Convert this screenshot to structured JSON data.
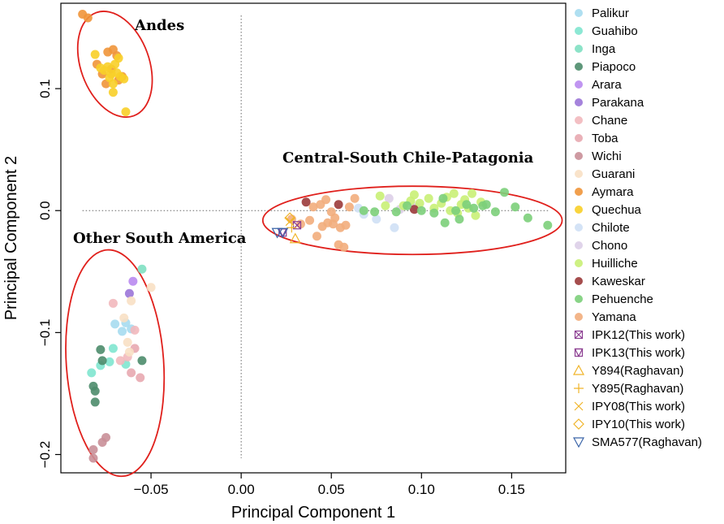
{
  "chart_data": {
    "type": "scatter",
    "xlabel": "Principal Component 1",
    "ylabel": "Principal Component 2",
    "xlim": [
      -0.1,
      0.18
    ],
    "ylim": [
      -0.215,
      0.17
    ],
    "xticks": [
      -0.05,
      0.0,
      0.05,
      0.1,
      0.15
    ],
    "xtick_labels": [
      "−0.05",
      "0.00",
      "0.05",
      "0.10",
      "0.15"
    ],
    "yticks": [
      -0.2,
      -0.1,
      0.0,
      0.1
    ],
    "ytick_labels": [
      "−0.2",
      "−0.1",
      "0.0",
      "0.1"
    ],
    "reference_lines": {
      "x": 0,
      "y": 0,
      "style": "dotted"
    },
    "grid": false,
    "legend_position": "right",
    "cluster_labels": [
      "Andes",
      "Central-South Chile-Patagonia",
      "Other South America"
    ],
    "clusters": [
      {
        "label": "Andes",
        "center": [
          -0.07,
          0.12
        ],
        "radii": [
          0.019,
          0.045
        ],
        "rotation": -20,
        "color": "#e0201c"
      },
      {
        "label": "Central-South Chile-Patagonia",
        "center": [
          0.095,
          -0.008
        ],
        "radii": [
          0.083,
          0.028
        ],
        "rotation": 0,
        "color": "#e0201c"
      },
      {
        "label": "Other South America",
        "center": [
          -0.07,
          -0.125
        ],
        "radii": [
          0.027,
          0.093
        ],
        "rotation": -4,
        "color": "#e0201c"
      }
    ],
    "series": [
      {
        "name": "Palikur",
        "marker": "circle",
        "color": "#a6dcef",
        "points": [
          [
            -0.07,
            -0.093
          ],
          [
            -0.066,
            -0.099
          ],
          [
            -0.064,
            -0.092
          ],
          [
            -0.061,
            -0.097
          ]
        ]
      },
      {
        "name": "Guahibo",
        "marker": "circle",
        "color": "#7fe6cf",
        "points": [
          [
            -0.083,
            -0.133
          ],
          [
            -0.078,
            -0.127
          ],
          [
            -0.073,
            -0.124
          ],
          [
            -0.071,
            -0.113
          ],
          [
            -0.064,
            -0.126
          ]
        ]
      },
      {
        "name": "Inga",
        "marker": "circle",
        "color": "#80e0c2",
        "points": [
          [
            -0.055,
            -0.048
          ]
        ]
      },
      {
        "name": "Piapoco",
        "marker": "circle",
        "color": "#4d8c6b",
        "points": [
          [
            -0.082,
            -0.144
          ],
          [
            -0.081,
            -0.148
          ],
          [
            -0.081,
            -0.157
          ],
          [
            -0.078,
            -0.114
          ],
          [
            -0.077,
            -0.123
          ],
          [
            -0.055,
            -0.123
          ]
        ]
      },
      {
        "name": "Arara",
        "marker": "circle",
        "color": "#b98af0",
        "points": [
          [
            -0.06,
            -0.058
          ]
        ]
      },
      {
        "name": "Parakana",
        "marker": "circle",
        "color": "#9b75d8",
        "points": [
          [
            -0.062,
            -0.068
          ]
        ]
      },
      {
        "name": "Chane",
        "marker": "circle",
        "color": "#f2b8bd",
        "points": [
          [
            -0.071,
            -0.076
          ],
          [
            -0.067,
            -0.123
          ],
          [
            -0.063,
            -0.12
          ],
          [
            -0.059,
            -0.098
          ]
        ]
      },
      {
        "name": "Toba",
        "marker": "circle",
        "color": "#e8a8b0",
        "points": [
          [
            -0.061,
            -0.133
          ],
          [
            -0.059,
            -0.113
          ],
          [
            -0.056,
            -0.137
          ]
        ]
      },
      {
        "name": "Wichi",
        "marker": "circle",
        "color": "#c98f98",
        "points": [
          [
            -0.082,
            -0.196
          ],
          [
            -0.082,
            -0.203
          ],
          [
            -0.077,
            -0.19
          ],
          [
            -0.075,
            -0.186
          ]
        ]
      },
      {
        "name": "Guarani",
        "marker": "circle",
        "color": "#f8e0c4",
        "points": [
          [
            -0.065,
            -0.088
          ],
          [
            -0.063,
            -0.108
          ],
          [
            -0.062,
            -0.116
          ],
          [
            -0.061,
            -0.074
          ],
          [
            -0.05,
            -0.063
          ]
        ]
      },
      {
        "name": "Aymara",
        "marker": "circle",
        "color": "#f0953a",
        "points": [
          [
            -0.088,
            0.161
          ],
          [
            -0.085,
            0.158
          ],
          [
            -0.08,
            0.12
          ],
          [
            -0.077,
            0.112
          ],
          [
            -0.075,
            0.104
          ],
          [
            -0.074,
            0.13
          ],
          [
            -0.072,
            0.116
          ],
          [
            -0.071,
            0.132
          ],
          [
            -0.069,
            0.127
          ],
          [
            -0.068,
            0.107
          ],
          [
            -0.066,
            0.11
          ]
        ]
      },
      {
        "name": "Quechua",
        "marker": "circle",
        "color": "#f8cf28",
        "points": [
          [
            -0.081,
            0.128
          ],
          [
            -0.078,
            0.117
          ],
          [
            -0.076,
            0.115
          ],
          [
            -0.074,
            0.118
          ],
          [
            -0.073,
            0.109
          ],
          [
            -0.072,
            0.112
          ],
          [
            -0.071,
            0.104
          ],
          [
            -0.071,
            0.097
          ],
          [
            -0.07,
            0.12
          ],
          [
            -0.069,
            0.113
          ],
          [
            -0.068,
            0.125
          ],
          [
            -0.067,
            0.11
          ],
          [
            -0.065,
            0.108
          ],
          [
            -0.064,
            0.081
          ]
        ]
      },
      {
        "name": "Chilote",
        "marker": "circle",
        "color": "#cfe0f5",
        "points": [
          [
            0.065,
            0.002
          ],
          [
            0.068,
            -0.003
          ],
          [
            0.075,
            -0.007
          ],
          [
            0.085,
            -0.014
          ]
        ]
      },
      {
        "name": "Chono",
        "marker": "circle",
        "color": "#ddcfe8",
        "points": [
          [
            0.082,
            0.01
          ],
          [
            0.088,
            0.001
          ],
          [
            0.097,
            0.003
          ]
        ]
      },
      {
        "name": "Huilliche",
        "marker": "circle",
        "color": "#c9ef76",
        "points": [
          [
            0.077,
            0.012
          ],
          [
            0.08,
            0.004
          ],
          [
            0.09,
            0.004
          ],
          [
            0.094,
            0.008
          ],
          [
            0.096,
            0.013
          ],
          [
            0.099,
            0.006
          ],
          [
            0.104,
            0.01
          ],
          [
            0.107,
            0.002
          ],
          [
            0.111,
            0.006
          ],
          [
            0.114,
            0.011
          ],
          [
            0.116,
            0.0
          ],
          [
            0.118,
            0.014
          ],
          [
            0.12,
            -0.002
          ],
          [
            0.122,
            0.005
          ],
          [
            0.124,
            0.009
          ],
          [
            0.126,
            0.002
          ],
          [
            0.128,
            0.014
          ],
          [
            0.13,
            -0.004
          ],
          [
            0.133,
            0.007
          ]
        ]
      },
      {
        "name": "Kaweskar",
        "marker": "circle",
        "color": "#9b3a3a",
        "points": [
          [
            0.036,
            0.007
          ],
          [
            0.054,
            0.005
          ],
          [
            0.096,
            0.001
          ]
        ]
      },
      {
        "name": "Pehuenche",
        "marker": "circle",
        "color": "#7ccf7a",
        "points": [
          [
            0.068,
            0.0
          ],
          [
            0.074,
            -0.001
          ],
          [
            0.086,
            -0.001
          ],
          [
            0.092,
            0.004
          ],
          [
            0.1,
            0.0
          ],
          [
            0.107,
            -0.002
          ],
          [
            0.112,
            0.01
          ],
          [
            0.113,
            -0.01
          ],
          [
            0.119,
            0.0
          ],
          [
            0.121,
            -0.007
          ],
          [
            0.125,
            0.005
          ],
          [
            0.129,
            0.002
          ],
          [
            0.134,
            0.004
          ],
          [
            0.136,
            0.005
          ],
          [
            0.141,
            -0.001
          ],
          [
            0.146,
            0.015
          ],
          [
            0.152,
            0.003
          ],
          [
            0.159,
            -0.006
          ],
          [
            0.17,
            -0.012
          ]
        ]
      },
      {
        "name": "Yamana",
        "marker": "circle",
        "color": "#f2ad7c",
        "points": [
          [
            0.028,
            -0.007
          ],
          [
            0.033,
            -0.011
          ],
          [
            0.038,
            -0.008
          ],
          [
            0.04,
            0.003
          ],
          [
            0.042,
            -0.021
          ],
          [
            0.044,
            0.005
          ],
          [
            0.045,
            -0.013
          ],
          [
            0.047,
            0.009
          ],
          [
            0.048,
            -0.01
          ],
          [
            0.05,
            -0.001
          ],
          [
            0.051,
            -0.011
          ],
          [
            0.052,
            -0.006
          ],
          [
            0.054,
            -0.028
          ],
          [
            0.055,
            -0.014
          ],
          [
            0.057,
            -0.03
          ],
          [
            0.058,
            -0.012
          ],
          [
            0.06,
            0.003
          ],
          [
            0.063,
            0.01
          ]
        ]
      },
      {
        "name": "IPK12(This work)",
        "marker": "boxx",
        "color": "#8b3d91",
        "points": [
          [
            0.031,
            -0.012
          ]
        ]
      },
      {
        "name": "IPK13(This work)",
        "marker": "boxtri",
        "color": "#8b3d91",
        "points": [
          [
            0.023,
            -0.018
          ]
        ]
      },
      {
        "name": "Y894(Raghavan)",
        "marker": "triangle",
        "color": "#f0b429",
        "points": [
          [
            0.03,
            -0.023
          ]
        ]
      },
      {
        "name": "Y895(Raghavan)",
        "marker": "plus",
        "color": "#f0b429",
        "points": [
          [
            0.028,
            -0.014
          ]
        ]
      },
      {
        "name": "IPY08(This work)",
        "marker": "x",
        "color": "#f0b429",
        "points": [
          [
            0.027,
            -0.009
          ]
        ]
      },
      {
        "name": "IPY10(This work)",
        "marker": "diamond",
        "color": "#f0b429",
        "points": [
          [
            0.027,
            -0.006
          ]
        ]
      },
      {
        "name": "SMA577(Raghavan)",
        "marker": "invtriangle",
        "color": "#3a64a8",
        "points": [
          [
            0.02,
            -0.018
          ],
          [
            0.023,
            -0.018
          ]
        ]
      }
    ]
  }
}
